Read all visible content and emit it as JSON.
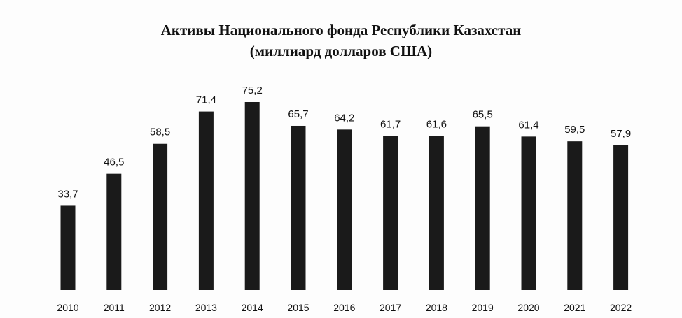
{
  "chart_data": {
    "type": "bar",
    "title": "Активы Национального фонда Республики Казахстан",
    "subtitle": "(миллиард долларов США)",
    "categories": [
      "2010",
      "2011",
      "2012",
      "2013",
      "2014",
      "2015",
      "2016",
      "2017",
      "2018",
      "2019",
      "2020",
      "2021",
      "2022"
    ],
    "values": [
      33.7,
      46.5,
      58.5,
      71.4,
      75.2,
      65.7,
      64.2,
      61.7,
      61.6,
      65.5,
      61.4,
      59.5,
      57.9
    ],
    "value_labels": [
      "33,7",
      "46,5",
      "58,5",
      "71,4",
      "75,2",
      "65,7",
      "64,2",
      "61,7",
      "61,6",
      "65,5",
      "61,4",
      "59,5",
      "57,9"
    ],
    "color": "#1a1a1a"
  }
}
